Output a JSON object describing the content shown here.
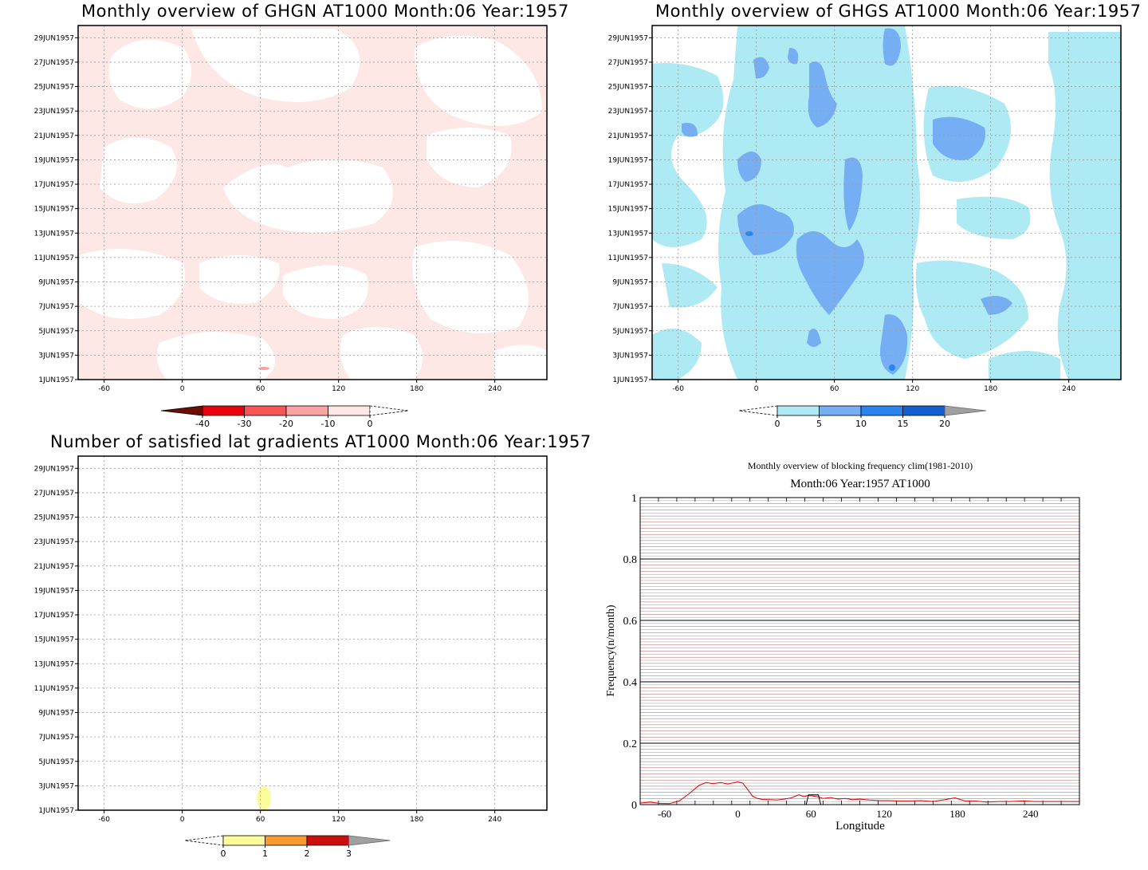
{
  "panels": {
    "ghgn": {
      "title": "Monthly overview of GHGN AT1000 Month:06 Year:1957"
    },
    "ghgs": {
      "title": "Monthly overview of GHGS AT1000 Month:06 Year:1957"
    },
    "lat_gradients": {
      "title": "Number of satisfied lat gradients AT1000 Month:06 Year:1957"
    },
    "blocking": {
      "title": "Monthly overview of blocking frequency clim(1981-2010)",
      "subtitle": "Month:06 Year:1957  AT1000"
    }
  },
  "chart_data": [
    {
      "type": "heatmap",
      "name": "ghgn",
      "title": "Monthly overview of GHGN AT1000 Month:06 Year:1957",
      "x_ticks": [
        "-60",
        "0",
        "60",
        "120",
        "180",
        "240"
      ],
      "x_tick_values": [
        -60,
        0,
        60,
        120,
        180,
        240
      ],
      "xlim": [
        -80,
        280
      ],
      "y_ticks": [
        "1JUN1957",
        "3JUN1957",
        "5JUN1957",
        "7JUN1957",
        "9JUN1957",
        "11JUN1957",
        "13JUN1957",
        "15JUN1957",
        "17JUN1957",
        "19JUN1957",
        "21JUN1957",
        "23JUN1957",
        "25JUN1957",
        "27JUN1957",
        "29JUN1957"
      ],
      "ylim": [
        1,
        30
      ],
      "grid": true,
      "colorbar": {
        "labels": [
          "-40",
          "-30",
          "-20",
          "-10",
          "0"
        ],
        "colors": [
          "#6b0d05",
          "#e8000a",
          "#f75555",
          "#f9a3a3",
          "#fde8e6",
          "#ffffff"
        ]
      }
    },
    {
      "type": "heatmap",
      "name": "ghgs",
      "title": "Monthly overview of GHGS AT1000 Month:06 Year:1957",
      "x_ticks": [
        "-60",
        "0",
        "60",
        "120",
        "180",
        "240"
      ],
      "x_tick_values": [
        -60,
        0,
        60,
        120,
        180,
        240
      ],
      "xlim": [
        -80,
        280
      ],
      "y_ticks": [
        "1JUN1957",
        "3JUN1957",
        "5JUN1957",
        "7JUN1957",
        "9JUN1957",
        "11JUN1957",
        "13JUN1957",
        "15JUN1957",
        "17JUN1957",
        "19JUN1957",
        "21JUN1957",
        "23JUN1957",
        "25JUN1957",
        "27JUN1957",
        "29JUN1957"
      ],
      "ylim": [
        1,
        30
      ],
      "grid": true,
      "colorbar": {
        "labels": [
          "0",
          "5",
          "10",
          "15",
          "20"
        ],
        "colors": [
          "#ffffff",
          "#aeeaf3",
          "#76aef3",
          "#2b84ee",
          "#1460d1",
          "#a0a0a0"
        ]
      }
    },
    {
      "type": "heatmap",
      "name": "lat_gradients",
      "title": "Number of satisfied lat gradients AT1000 Month:06 Year:1957",
      "x_ticks": [
        "-60",
        "0",
        "60",
        "120",
        "180",
        "240"
      ],
      "x_tick_values": [
        -60,
        0,
        60,
        120,
        180,
        240
      ],
      "xlim": [
        -80,
        280
      ],
      "y_ticks": [
        "1JUN1957",
        "3JUN1957",
        "5JUN1957",
        "7JUN1957",
        "9JUN1957",
        "11JUN1957",
        "13JUN1957",
        "15JUN1957",
        "17JUN1957",
        "19JUN1957",
        "21JUN1957",
        "23JUN1957",
        "25JUN1957",
        "27JUN1957",
        "29JUN1957"
      ],
      "ylim": [
        1,
        30
      ],
      "grid": true,
      "colorbar": {
        "labels": [
          "0",
          "1",
          "2",
          "3"
        ],
        "colors": [
          "#ffffff",
          "#fcfd9a",
          "#f89b2e",
          "#cb0f0f",
          "#a0a0a0"
        ]
      }
    },
    {
      "type": "line",
      "name": "blocking_frequency",
      "title": "Monthly overview of blocking frequency clim(1981-2010)",
      "subtitle": "Month:06 Year:1957  AT1000",
      "xlabel": "Longitude",
      "ylabel": "Frequency(n/month)",
      "x_ticks": [
        "-60",
        "0",
        "60",
        "120",
        "180",
        "240"
      ],
      "x_tick_values": [
        -60,
        0,
        60,
        120,
        180,
        240
      ],
      "y_ticks": [
        "0",
        "0.2",
        "0.4",
        "0.6",
        "0.8",
        "1"
      ],
      "y_tick_values": [
        0,
        0.2,
        0.4,
        0.6,
        0.8,
        1
      ],
      "xlim": [
        -80,
        280
      ],
      "ylim": [
        0,
        1
      ],
      "grid": true,
      "series": [
        {
          "color": "#e00000",
          "x": [
            -80,
            -72,
            -64,
            -56,
            -48,
            -40,
            -32,
            -26,
            -20,
            -14,
            -8,
            -4,
            0,
            4,
            8,
            12,
            16,
            20,
            26,
            32,
            38,
            44,
            50,
            54,
            58,
            62,
            66,
            70,
            76,
            82,
            88,
            94,
            100,
            108,
            116,
            124,
            132,
            140,
            150,
            160,
            170,
            178,
            186,
            194,
            204,
            214,
            224,
            234,
            244,
            254,
            264,
            272,
            280
          ],
          "y": [
            0.005,
            0.008,
            0.004,
            0.003,
            0.012,
            0.035,
            0.062,
            0.072,
            0.068,
            0.072,
            0.067,
            0.071,
            0.074,
            0.07,
            0.05,
            0.028,
            0.02,
            0.017,
            0.016,
            0.015,
            0.018,
            0.022,
            0.032,
            0.026,
            0.03,
            0.028,
            0.025,
            0.02,
            0.023,
            0.018,
            0.02,
            0.016,
            0.018,
            0.015,
            0.013,
            0.013,
            0.012,
            0.012,
            0.013,
            0.01,
            0.016,
            0.022,
            0.012,
            0.012,
            0.008,
            0.01,
            0.01,
            0.012,
            0.01,
            0.01,
            0.01,
            0.01,
            0.01
          ]
        },
        {
          "color": "#000000",
          "x": [
            -80,
            56,
            58,
            60,
            62,
            64,
            66,
            68,
            70,
            280
          ],
          "y": [
            0,
            0,
            0.032,
            0.032,
            0.032,
            0.032,
            0.032,
            0,
            0,
            0
          ]
        }
      ]
    }
  ]
}
